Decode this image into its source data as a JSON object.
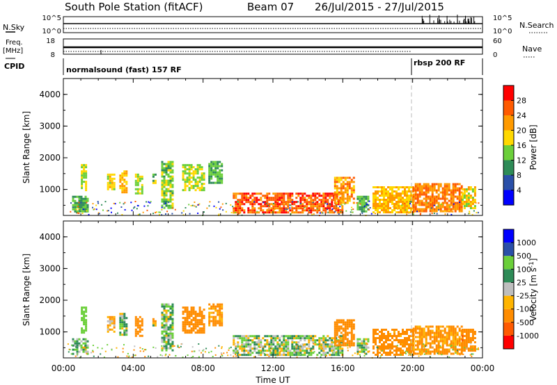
{
  "header": {
    "station": "South Pole Station (fitACF)",
    "beam": "Beam 07",
    "dates": "26/Jul/2015 - 27/Jul/2015"
  },
  "top_panels": {
    "nsky_label": "N.Sky",
    "nsearch_label": "N.Search",
    "nsky_ticks": [
      "10^5",
      "10^0"
    ],
    "nsearch_ticks": [
      "10^5",
      "10^0"
    ],
    "freq_label_1": "Freq.",
    "freq_label_2": "[MHz]",
    "freq_ticks": [
      "18",
      "8"
    ],
    "nave_ticks": [
      "60",
      "0"
    ],
    "nave_label": "Nave",
    "cpid_label": "CPID",
    "cpid_segments": [
      {
        "label": "normalsound (fast) 157 RF",
        "start_hour": 0
      },
      {
        "label": "rbsp 200 RF",
        "start_hour": 20
      }
    ]
  },
  "colors": {
    "power_scale": [
      "#0000ff",
      "#2a4fa8",
      "#2e8b57",
      "#6bcf3a",
      "#ffd800",
      "#ff9a00",
      "#ff5a00",
      "#ff0000"
    ],
    "velocity_scale": [
      "#ff0000",
      "#ff5a00",
      "#ff8c00",
      "#ffb400",
      "#bebebe",
      "#2e8b57",
      "#6bcf3a",
      "#2a4fa8",
      "#0000ff"
    ]
  },
  "chart_data": [
    {
      "type": "heatmap",
      "title": "",
      "xlabel": "",
      "ylabel": "Slant Range [km]",
      "colorbar_label": "Power [dB]",
      "colorbar_ticks": [
        "4",
        "8",
        "12",
        "16",
        "20",
        "24",
        "28"
      ],
      "xlim": [
        0,
        24
      ],
      "ylim": [
        180,
        4500
      ],
      "yticks": [
        "1000",
        "2000",
        "3000",
        "4000"
      ],
      "regions": [
        {
          "t": [
            0.5,
            1.4
          ],
          "r": [
            300,
            800
          ],
          "v": 12
        },
        {
          "t": [
            1.0,
            1.3
          ],
          "r": [
            1000,
            1800
          ],
          "v": 16
        },
        {
          "t": [
            2.5,
            2.9
          ],
          "r": [
            1000,
            1500
          ],
          "v": 18
        },
        {
          "t": [
            3.2,
            3.6
          ],
          "r": [
            900,
            1600
          ],
          "v": 20
        },
        {
          "t": [
            4.1,
            4.5
          ],
          "r": [
            900,
            1500
          ],
          "v": 16
        },
        {
          "t": [
            5.1,
            5.3
          ],
          "r": [
            1200,
            1500
          ],
          "v": 14
        },
        {
          "t": [
            5.6,
            6.3
          ],
          "r": [
            400,
            1900
          ],
          "v": 14
        },
        {
          "t": [
            6.8,
            8.1
          ],
          "r": [
            1000,
            1800
          ],
          "v": 16
        },
        {
          "t": [
            8.3,
            9.1
          ],
          "r": [
            1200,
            1900
          ],
          "v": 12
        },
        {
          "t": [
            9.7,
            16.0
          ],
          "r": [
            300,
            900
          ],
          "v": 26
        },
        {
          "t": [
            15.5,
            16.6
          ],
          "r": [
            600,
            1400
          ],
          "v": 22
        },
        {
          "t": [
            16.8,
            17.5
          ],
          "r": [
            300,
            800
          ],
          "v": 12
        },
        {
          "t": [
            17.7,
            20.0
          ],
          "r": [
            300,
            1100
          ],
          "v": 20
        },
        {
          "t": [
            20.0,
            22.8
          ],
          "r": [
            300,
            1200
          ],
          "v": 24
        },
        {
          "t": [
            22.8,
            23.6
          ],
          "r": [
            400,
            1100
          ],
          "v": 18
        }
      ]
    },
    {
      "type": "heatmap",
      "title": "",
      "xlabel": "Time UT",
      "ylabel": "Slant Range [km]",
      "colorbar_label": "Velocity [m s^-1]",
      "colorbar_ticks": [
        "-1000",
        "-500",
        "-100",
        "-25",
        "25",
        "100",
        "500",
        "1000"
      ],
      "xlim": [
        0,
        24
      ],
      "ylim": [
        180,
        4500
      ],
      "xticks": [
        "00:00",
        "04:00",
        "08:00",
        "12:00",
        "16:00",
        "20:00",
        "00:00"
      ],
      "yticks": [
        "1000",
        "2000",
        "3000",
        "4000"
      ],
      "regions": [
        {
          "t": [
            0.5,
            1.4
          ],
          "r": [
            300,
            800
          ],
          "v": 60
        },
        {
          "t": [
            1.0,
            1.3
          ],
          "r": [
            1000,
            1800
          ],
          "v": 300
        },
        {
          "t": [
            2.5,
            2.9
          ],
          "r": [
            1000,
            1500
          ],
          "v": -100
        },
        {
          "t": [
            3.2,
            3.6
          ],
          "r": [
            900,
            1600
          ],
          "v": 50
        },
        {
          "t": [
            4.1,
            4.5
          ],
          "r": [
            900,
            1500
          ],
          "v": -200
        },
        {
          "t": [
            5.1,
            5.3
          ],
          "r": [
            1200,
            1500
          ],
          "v": -60
        },
        {
          "t": [
            5.6,
            6.3
          ],
          "r": [
            400,
            1900
          ],
          "v": 60
        },
        {
          "t": [
            6.8,
            8.1
          ],
          "r": [
            1000,
            1800
          ],
          "v": -250
        },
        {
          "t": [
            8.3,
            9.1
          ],
          "r": [
            1200,
            1900
          ],
          "v": -150
        },
        {
          "t": [
            9.7,
            16.0
          ],
          "r": [
            300,
            900
          ],
          "v": 40
        },
        {
          "t": [
            15.5,
            16.6
          ],
          "r": [
            600,
            1400
          ],
          "v": -300
        },
        {
          "t": [
            16.8,
            17.5
          ],
          "r": [
            300,
            800
          ],
          "v": 60
        },
        {
          "t": [
            17.7,
            20.0
          ],
          "r": [
            300,
            1100
          ],
          "v": -200
        },
        {
          "t": [
            20.0,
            22.8
          ],
          "r": [
            300,
            1200
          ],
          "v": -150
        },
        {
          "t": [
            22.8,
            23.6
          ],
          "r": [
            400,
            1100
          ],
          "v": -400
        }
      ]
    }
  ]
}
